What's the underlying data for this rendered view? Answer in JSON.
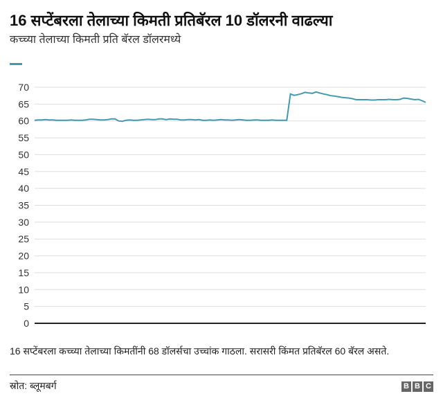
{
  "title": "16 सप्टेंबरला तेलाच्या किमती प्रतिबॅरल 10 डॉलरनी वाढल्या",
  "subtitle": "कच्च्या तेलाच्या किमती प्रति बॅरल डॉलरमध्ये",
  "note": "16 सप्टेंबरला कच्च्या तेलाच्या किमतींनी 68 डॉलर्सचा उच्चांक गाठला. सरासरी किंमत प्रतिबॅरल 60 बॅरल असते.",
  "source": "स्रोत: ब्लूमबर्ग",
  "logo": "BBC",
  "colors": {
    "line": "#4399b0",
    "grid": "#dddddd",
    "axis": "#222222"
  },
  "chart_data": {
    "type": "line",
    "title": "",
    "xlabel": "",
    "ylabel": "",
    "ylim": [
      0,
      70
    ],
    "yticks": [
      0,
      5,
      10,
      15,
      20,
      25,
      30,
      35,
      40,
      45,
      50,
      55,
      60,
      65,
      70
    ],
    "grid": true,
    "series": [
      {
        "values": [
          60.2,
          60.3,
          60.3,
          60.4,
          60.3,
          60.3,
          60.2,
          60.2,
          60.2,
          60.2,
          60.3,
          60.2,
          60.2,
          60.2,
          60.3,
          60.5,
          60.5,
          60.4,
          60.3,
          60.3,
          60.4,
          60.6,
          60.6,
          60.0,
          59.9,
          60.2,
          60.3,
          60.2,
          60.2,
          60.3,
          60.4,
          60.5,
          60.4,
          60.4,
          60.6,
          60.6,
          60.4,
          60.6,
          60.5,
          60.5,
          60.3,
          60.3,
          60.4,
          60.4,
          60.3,
          60.4,
          60.2,
          60.2,
          60.3,
          60.2,
          60.3,
          60.4,
          60.3,
          60.3,
          60.2,
          60.3,
          60.4,
          60.3,
          60.2,
          60.2,
          60.3,
          60.3,
          60.2,
          60.2,
          60.2,
          60.3,
          60.2,
          60.2,
          60.2,
          60.2,
          68.0,
          67.6,
          67.8,
          68.1,
          68.5,
          68.3,
          68.2,
          68.6,
          68.3,
          68.0,
          67.8,
          67.5,
          67.4,
          67.2,
          67.0,
          66.9,
          66.8,
          66.6,
          66.3,
          66.3,
          66.3,
          66.3,
          66.2,
          66.2,
          66.3,
          66.3,
          66.3,
          66.4,
          66.3,
          66.3,
          66.4,
          66.8,
          66.7,
          66.5,
          66.3,
          66.4,
          66.0,
          65.5
        ]
      }
    ]
  }
}
